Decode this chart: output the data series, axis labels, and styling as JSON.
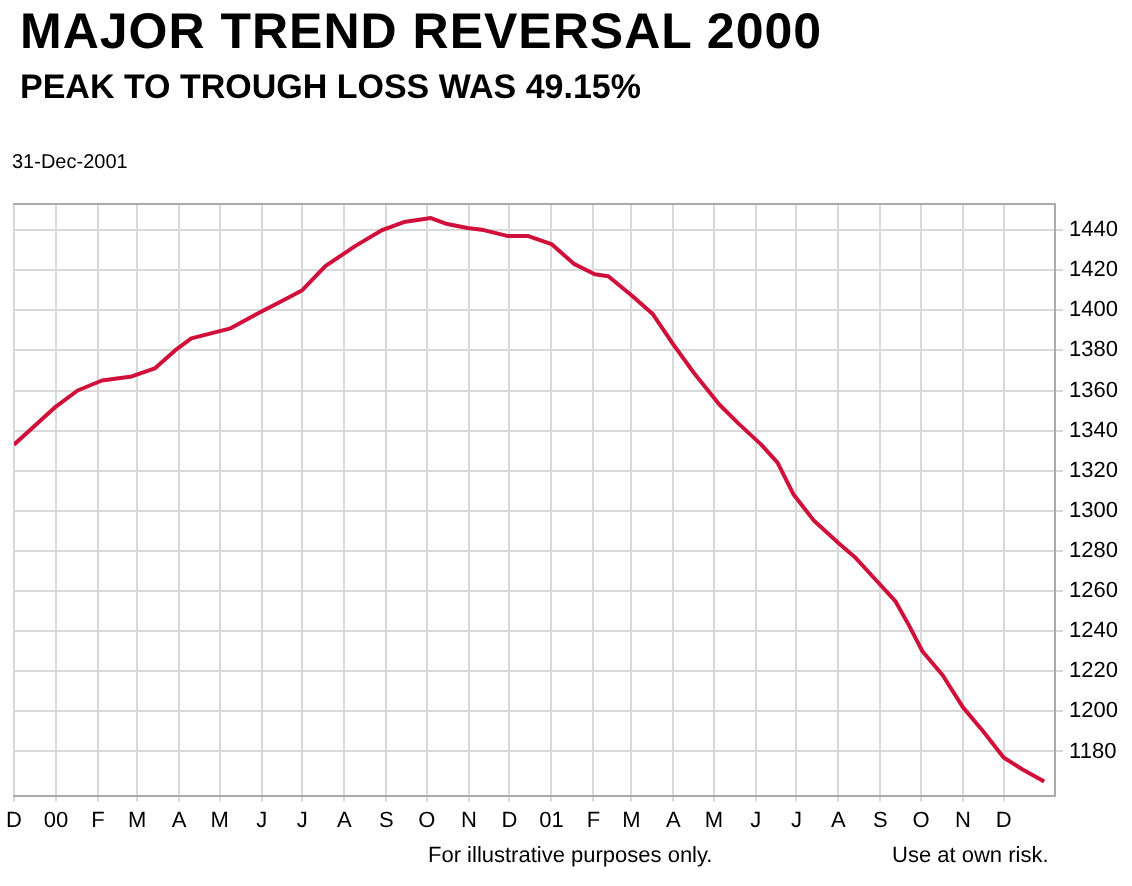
{
  "chart_data": {
    "type": "line",
    "title": "MAJOR TREND REVERSAL 2000",
    "subtitle": "PEAK TO TROUGH LOSS WAS 49.15%",
    "annotations": [
      "31-Dec-2001",
      "For illustrative purposes only.",
      "Use at own risk."
    ],
    "x": [
      "1999-12-01",
      "2000-01-01",
      "2000-01-17",
      "2000-02-04",
      "2000-02-26",
      "2000-03-14",
      "2000-03-29",
      "2000-04-10",
      "2000-05-09",
      "2000-05-28",
      "2000-06-17",
      "2000-07-01",
      "2000-07-18",
      "2000-08-09",
      "2000-08-29",
      "2000-09-14",
      "2000-10-04",
      "2000-10-16",
      "2000-10-31",
      "2000-11-12",
      "2000-11-30",
      "2000-12-15",
      "2001-01-01",
      "2001-01-18",
      "2001-02-02",
      "2001-02-12",
      "2001-03-02",
      "2001-03-17",
      "2001-04-01",
      "2001-04-16",
      "2001-05-05",
      "2001-05-20",
      "2001-06-05",
      "2001-06-17",
      "2001-06-29",
      "2001-07-14",
      "2001-08-01",
      "2001-08-13",
      "2001-08-28",
      "2001-09-12",
      "2001-09-22",
      "2001-10-02",
      "2001-10-17",
      "2001-11-01",
      "2001-11-16",
      "2001-12-01",
      "2001-12-15",
      "2001-12-31"
    ],
    "series": [
      {
        "color": "#d0103a",
        "values": [
          1333,
          1352,
          1360,
          1365,
          1367,
          1371,
          1380,
          1386,
          1391,
          1398,
          1405,
          1410,
          1422,
          1432,
          1440,
          1444,
          1446,
          1443,
          1441,
          1440,
          1437,
          1437,
          1433,
          1423,
          1418,
          1417,
          1407,
          1398,
          1383,
          1369,
          1353,
          1343,
          1333,
          1324,
          1308,
          1295,
          1284,
          1277,
          1266,
          1255,
          1243,
          1230,
          1218,
          1202,
          1190,
          1177,
          1171,
          1165
        ]
      }
    ],
    "xlim": [
      "1999-12-01",
      "2002-01-08"
    ],
    "xticks": [
      {
        "value": "1999-12-01",
        "label": "D"
      },
      {
        "value": "2000-01-01",
        "label": "00"
      },
      {
        "value": "2000-02-01",
        "label": "F"
      },
      {
        "value": "2000-03-01",
        "label": "M"
      },
      {
        "value": "2000-04-01",
        "label": "A"
      },
      {
        "value": "2000-05-01",
        "label": "M"
      },
      {
        "value": "2000-06-01",
        "label": "J"
      },
      {
        "value": "2000-07-01",
        "label": "J"
      },
      {
        "value": "2000-08-01",
        "label": "A"
      },
      {
        "value": "2000-09-01",
        "label": "S"
      },
      {
        "value": "2000-10-01",
        "label": "O"
      },
      {
        "value": "2000-11-01",
        "label": "N"
      },
      {
        "value": "2000-12-01",
        "label": "D"
      },
      {
        "value": "2001-01-01",
        "label": "01"
      },
      {
        "value": "2001-02-01",
        "label": "F"
      },
      {
        "value": "2001-03-01",
        "label": "M"
      },
      {
        "value": "2001-04-01",
        "label": "A"
      },
      {
        "value": "2001-05-01",
        "label": "M"
      },
      {
        "value": "2001-06-01",
        "label": "J"
      },
      {
        "value": "2001-07-01",
        "label": "J"
      },
      {
        "value": "2001-08-01",
        "label": "A"
      },
      {
        "value": "2001-09-01",
        "label": "S"
      },
      {
        "value": "2001-10-01",
        "label": "O"
      },
      {
        "value": "2001-11-01",
        "label": "N"
      },
      {
        "value": "2001-12-01",
        "label": "D"
      }
    ],
    "ylim": [
      1158,
      1453
    ],
    "yticks": [
      1180,
      1200,
      1220,
      1240,
      1260,
      1280,
      1300,
      1320,
      1340,
      1360,
      1380,
      1400,
      1420,
      1440
    ],
    "grid": true,
    "marker": "none",
    "line_style": "solid"
  }
}
